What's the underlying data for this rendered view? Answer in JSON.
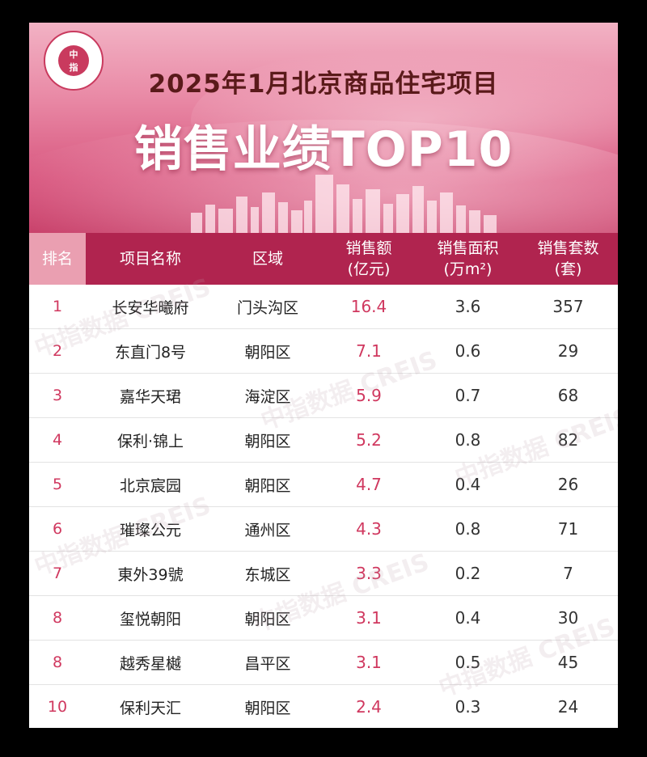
{
  "header": {
    "logo_text_top": "中",
    "logo_text_bottom": "指",
    "title_line1": "2025年1月北京商品住宅项目",
    "title_line2": "销售业绩TOP10"
  },
  "table": {
    "columns": [
      {
        "key": "rank",
        "line1": "排名",
        "line2": ""
      },
      {
        "key": "name",
        "line1": "项目名称",
        "line2": ""
      },
      {
        "key": "district",
        "line1": "区域",
        "line2": ""
      },
      {
        "key": "amount",
        "line1": "销售额",
        "line2": "(亿元)"
      },
      {
        "key": "area",
        "line1": "销售面积",
        "line2": "(万m²)"
      },
      {
        "key": "units",
        "line1": "销售套数",
        "line2": "(套)"
      }
    ],
    "rows": [
      {
        "rank": "1",
        "name": "长安华曦府",
        "district": "门头沟区",
        "amount": "16.4",
        "area": "3.6",
        "units": "357"
      },
      {
        "rank": "2",
        "name": "东直门8号",
        "district": "朝阳区",
        "amount": "7.1",
        "area": "0.6",
        "units": "29"
      },
      {
        "rank": "3",
        "name": "嘉华天珺",
        "district": "海淀区",
        "amount": "5.9",
        "area": "0.7",
        "units": "68"
      },
      {
        "rank": "4",
        "name": "保利·锦上",
        "district": "朝阳区",
        "amount": "5.2",
        "area": "0.8",
        "units": "82"
      },
      {
        "rank": "5",
        "name": "北京宸园",
        "district": "朝阳区",
        "amount": "4.7",
        "area": "0.4",
        "units": "26"
      },
      {
        "rank": "6",
        "name": "璀璨公元",
        "district": "通州区",
        "amount": "4.3",
        "area": "0.8",
        "units": "71"
      },
      {
        "rank": "7",
        "name": "東外39號",
        "district": "东城区",
        "amount": "3.3",
        "area": "0.2",
        "units": "7"
      },
      {
        "rank": "8",
        "name": "玺悦朝阳",
        "district": "朝阳区",
        "amount": "3.1",
        "area": "0.4",
        "units": "30"
      },
      {
        "rank": "8",
        "name": "越秀星樾",
        "district": "昌平区",
        "amount": "3.1",
        "area": "0.5",
        "units": "45"
      },
      {
        "rank": "10",
        "name": "保利天汇",
        "district": "朝阳区",
        "amount": "2.4",
        "area": "0.3",
        "units": "24"
      }
    ]
  },
  "watermark": "中指数据 CREIS",
  "colors": {
    "header_bg": "#b0244f",
    "rank_header_bg": "#ea9fb1",
    "accent_red": "#d0385f",
    "title_dark": "#5a1a1a"
  }
}
